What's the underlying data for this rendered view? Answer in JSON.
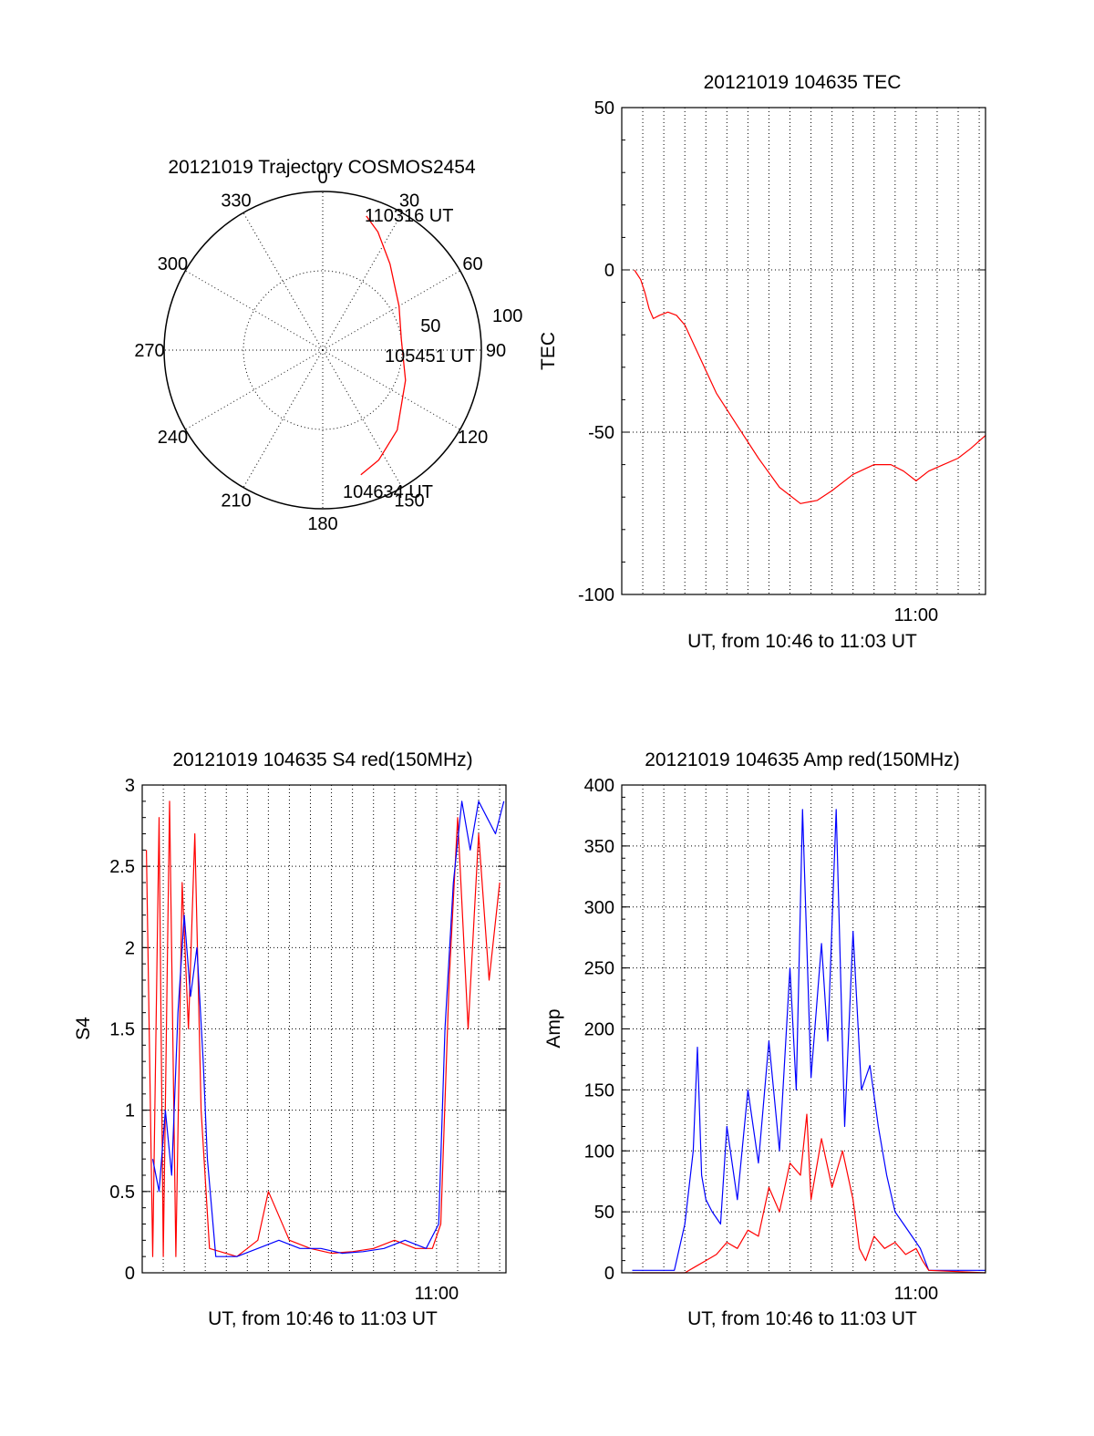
{
  "colors": {
    "red": "#ff0000",
    "blue": "#0000ff",
    "axis": "#000000"
  },
  "chart_data": [
    {
      "type": "polar",
      "title": "20121019 Trajectory COSMOS2454",
      "angle_labels": [
        "0",
        "30",
        "60",
        "90",
        "120",
        "150",
        "180",
        "210",
        "240",
        "270",
        "300",
        "330"
      ],
      "angle_values": [
        0,
        30,
        60,
        90,
        120,
        150,
        180,
        210,
        240,
        270,
        300,
        330
      ],
      "radial_labels": [
        "50",
        "100"
      ],
      "trajectory": {
        "units": "elevation_deg / azimuth_deg",
        "points": [
          [
            10,
            18
          ],
          [
            16,
            25
          ],
          [
            28,
            38
          ],
          [
            40,
            60
          ],
          [
            45,
            82
          ],
          [
            40,
            110
          ],
          [
            28,
            137
          ],
          [
            20,
            153
          ],
          [
            16,
            163
          ]
        ]
      },
      "annotations": [
        "110316 UT",
        "105451 UT",
        "104634 UT"
      ],
      "grid": true
    },
    {
      "type": "line",
      "title": "20121019 104635 TEC",
      "xlabel": "UT, from 10:46 to 11:03 UT",
      "ylabel": "TEC",
      "x_units": "minutes after 10:46",
      "xlim": [
        0,
        17.3
      ],
      "ylim": [
        -100,
        50
      ],
      "yticks": [
        "-100",
        "-50",
        "0",
        "50"
      ],
      "xtick_labels": [
        {
          "at": 14,
          "label": "11:00"
        }
      ],
      "grid": true,
      "series": [
        {
          "color": "#ff0000",
          "x": [
            0.6,
            0.9,
            1.1,
            1.3,
            1.5,
            1.8,
            2.2,
            2.6,
            3.0,
            3.5,
            4.5,
            5.5,
            6.5,
            7.5,
            8.5,
            9.3,
            10.0,
            11.0,
            12.0,
            12.8,
            13.4,
            14.0,
            14.6,
            15.3,
            16.0,
            16.6,
            17.3
          ],
          "y": [
            0,
            -3,
            -7,
            -12,
            -15,
            -14,
            -13,
            -14,
            -17,
            -24,
            -38,
            -48,
            -58,
            -67,
            -72,
            -71,
            -68,
            -63,
            -60,
            -60,
            -62,
            -65,
            -62,
            -60,
            -58,
            -55,
            -51
          ]
        }
      ]
    },
    {
      "type": "line",
      "title": "20121019 104635 S4 red(150MHz)",
      "xlabel": "UT, from 10:46 to 11:03 UT",
      "ylabel": "S4",
      "x_units": "minutes after 10:46",
      "xlim": [
        0,
        17.3
      ],
      "ylim": [
        0,
        3
      ],
      "yticks": [
        "0",
        "0.5",
        "1",
        "1.5",
        "2",
        "2.5",
        "3"
      ],
      "xtick_labels": [
        {
          "at": 14,
          "label": "11:00"
        }
      ],
      "grid": true,
      "series": [
        {
          "color": "#ff0000",
          "x": [
            0.2,
            0.5,
            0.8,
            1.0,
            1.3,
            1.6,
            1.9,
            2.2,
            2.5,
            2.8,
            3.2,
            4.5,
            5.5,
            6.0,
            7.0,
            8.0,
            9.0,
            10.0,
            11.0,
            12.0,
            13.0,
            13.8,
            14.2,
            14.6,
            15.0,
            15.5,
            16.0,
            16.5,
            17.0
          ],
          "y": [
            2.6,
            0.1,
            2.8,
            0.1,
            2.9,
            0.1,
            2.4,
            1.5,
            2.7,
            1.0,
            0.15,
            0.1,
            0.2,
            0.5,
            0.2,
            0.15,
            0.12,
            0.13,
            0.15,
            0.2,
            0.15,
            0.15,
            0.3,
            1.8,
            2.8,
            1.5,
            2.7,
            1.8,
            2.4
          ]
        },
        {
          "color": "#0000ff",
          "x": [
            0.5,
            0.8,
            1.1,
            1.4,
            1.7,
            2.0,
            2.3,
            2.6,
            2.9,
            3.1,
            3.5,
            4.5,
            5.5,
            6.5,
            7.5,
            8.5,
            9.5,
            10.5,
            11.5,
            12.5,
            13.5,
            14.1,
            14.4,
            14.8,
            15.2,
            15.6,
            16.0,
            16.4,
            16.8,
            17.2
          ],
          "y": [
            0.7,
            0.5,
            1.0,
            0.6,
            1.6,
            2.2,
            1.7,
            2.0,
            1.3,
            0.7,
            0.1,
            0.1,
            0.15,
            0.2,
            0.15,
            0.15,
            0.12,
            0.13,
            0.15,
            0.2,
            0.15,
            0.3,
            1.5,
            2.4,
            2.9,
            2.6,
            2.9,
            2.8,
            2.7,
            2.9
          ]
        }
      ]
    },
    {
      "type": "line",
      "title": "20121019 104635 Amp red(150MHz)",
      "xlabel": "UT, from 10:46 to 11:03 UT",
      "ylabel": "Amp",
      "x_units": "minutes after 10:46",
      "xlim": [
        0,
        17.3
      ],
      "ylim": [
        0,
        400
      ],
      "yticks": [
        "0",
        "50",
        "100",
        "150",
        "200",
        "250",
        "300",
        "350",
        "400"
      ],
      "xtick_labels": [
        {
          "at": 14,
          "label": "11:00"
        }
      ],
      "grid": true,
      "series": [
        {
          "color": "#0000ff",
          "x": [
            0.5,
            2.5,
            3.0,
            3.4,
            3.6,
            3.8,
            4.0,
            4.3,
            4.7,
            5.0,
            5.5,
            6.0,
            6.5,
            7.0,
            7.5,
            8.0,
            8.3,
            8.6,
            9.0,
            9.5,
            9.8,
            10.2,
            10.6,
            11.0,
            11.4,
            11.8,
            12.2,
            12.6,
            13.0,
            13.4,
            13.8,
            14.2,
            14.6,
            17.3
          ],
          "y": [
            2,
            2,
            40,
            100,
            185,
            80,
            60,
            50,
            40,
            120,
            60,
            150,
            90,
            190,
            100,
            250,
            150,
            380,
            160,
            270,
            190,
            380,
            120,
            280,
            150,
            170,
            120,
            80,
            50,
            40,
            30,
            20,
            2,
            2
          ]
        },
        {
          "color": "#ff0000",
          "x": [
            0.5,
            3.0,
            3.5,
            4.0,
            4.5,
            5.0,
            5.5,
            6.0,
            6.5,
            7.0,
            7.5,
            8.0,
            8.5,
            8.8,
            9.0,
            9.5,
            10.0,
            10.5,
            11.0,
            11.3,
            11.6,
            12.0,
            12.5,
            13.0,
            13.5,
            14.0,
            14.3,
            14.6,
            17.3
          ],
          "y": [
            0,
            0,
            5,
            10,
            15,
            25,
            20,
            35,
            30,
            70,
            50,
            90,
            80,
            130,
            60,
            110,
            70,
            100,
            60,
            20,
            10,
            30,
            20,
            25,
            15,
            20,
            10,
            2,
            0
          ]
        }
      ]
    }
  ]
}
